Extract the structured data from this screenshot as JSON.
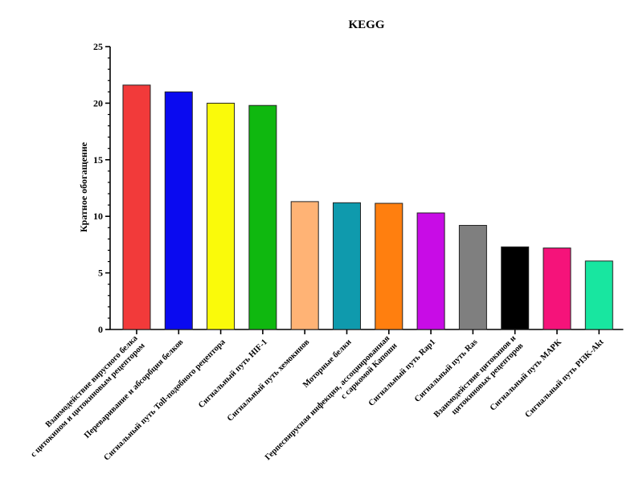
{
  "chart_data": {
    "type": "bar",
    "title": "KEGG",
    "xlabel": "",
    "ylabel": "Кратное обогащение",
    "ylim": [
      0,
      25
    ],
    "yticks": [
      0,
      5,
      10,
      15,
      20,
      25
    ],
    "grid": false,
    "categories": [
      [
        "Взаимодействие вирусного белка",
        "с цитокином и цитокиновым рецептором"
      ],
      [
        "Переваривание и абсорбция белков"
      ],
      [
        "Сигнальный путь Toll-подобного рецептора"
      ],
      [
        "Сигнальный путь HIF-1"
      ],
      [
        "Сигнальный путь хемокинов"
      ],
      [
        "Моторные белки"
      ],
      [
        "Герпесвирусная инфекция, ассоциированная",
        "с саркомой Капоши"
      ],
      [
        "Сигнальный путь Rap1"
      ],
      [
        "Сигнальный путь Ras"
      ],
      [
        "Взаимодействие цитокинов и",
        "цитокиновых рецепторов"
      ],
      [
        "Сигнальный путь MAPK"
      ],
      [
        "Сигнальный путь PI3K-Akt"
      ]
    ],
    "values": [
      21.6,
      21.0,
      20.0,
      19.8,
      11.3,
      11.2,
      11.15,
      10.3,
      9.2,
      7.3,
      7.2,
      6.05
    ],
    "colors": [
      "#f23a3a",
      "#0a0af0",
      "#fafa0a",
      "#0fb80f",
      "#ffb375",
      "#0f9aad",
      "#ff7f0f",
      "#c80ce6",
      "#7f7f7f",
      "#000000",
      "#f5137a",
      "#18e6a0"
    ]
  }
}
